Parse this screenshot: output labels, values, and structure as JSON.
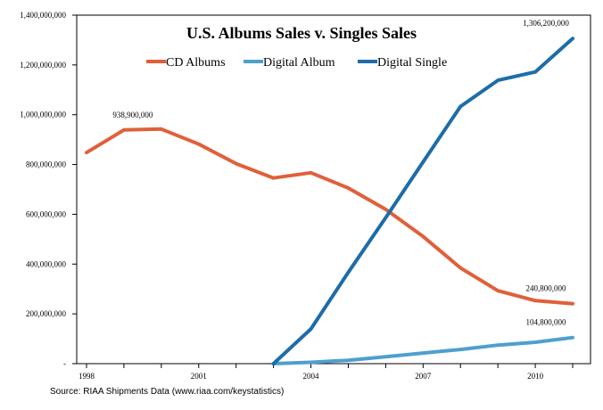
{
  "chart_data": {
    "type": "line",
    "title": "U.S. Albums Sales v. Singles Sales",
    "xlabel": "",
    "ylabel": "",
    "x": [
      1998,
      1999,
      2000,
      2001,
      2002,
      2003,
      2004,
      2005,
      2006,
      2007,
      2008,
      2009,
      2010,
      2011
    ],
    "xticks": [
      1998,
      2001,
      2004,
      2007,
      2010
    ],
    "xtick_labels": [
      "1998",
      "2001",
      "2004",
      "2007",
      "2010"
    ],
    "ylim": [
      0,
      1400000000
    ],
    "yticks": [
      0,
      200000000,
      400000000,
      600000000,
      800000000,
      1000000000,
      1200000000,
      1400000000
    ],
    "ytick_labels": [
      "-",
      "200,000,000",
      "400,000,000",
      "600,000,000",
      "800,000,000",
      "1,000,000,000",
      "1,200,000,000",
      "1,400,000,000"
    ],
    "grid": false,
    "legend_position": "top",
    "series": [
      {
        "name": "CD Albums",
        "color": "#e0603a",
        "values": [
          848000000,
          938900000,
          942500000,
          881900000,
          803300000,
          746000000,
          767000000,
          705400000,
          619700000,
          511100000,
          384700000,
          292900000,
          253000000,
          240800000
        ]
      },
      {
        "name": "Digital Album",
        "color": "#4e9fcf",
        "values": [
          null,
          null,
          null,
          null,
          null,
          0,
          5500000,
          13600000,
          27600000,
          42500000,
          56900000,
          74500000,
          85800000,
          104800000
        ]
      },
      {
        "name": "Digital Single",
        "color": "#1e6ca8",
        "values": [
          null,
          null,
          null,
          null,
          null,
          0,
          139400000,
          366900000,
          586400000,
          809900000,
          1033000000,
          1138300000,
          1172000000,
          1306200000
        ]
      }
    ],
    "annotations": [
      {
        "text": "938,900,000",
        "x": 1999,
        "y": 938900000,
        "series": "CD Albums"
      },
      {
        "text": "240,800,000",
        "x": 2011,
        "y": 240800000,
        "series": "CD Albums"
      },
      {
        "text": "104,800,000",
        "x": 2011,
        "y": 104800000,
        "series": "Digital Album"
      },
      {
        "text": "1,306,200,000",
        "x": 2011,
        "y": 1306200000,
        "series": "Digital Single"
      }
    ]
  },
  "source_note": "Source: RIAA Shipments Data (www.riaa.com/keystatistics)"
}
